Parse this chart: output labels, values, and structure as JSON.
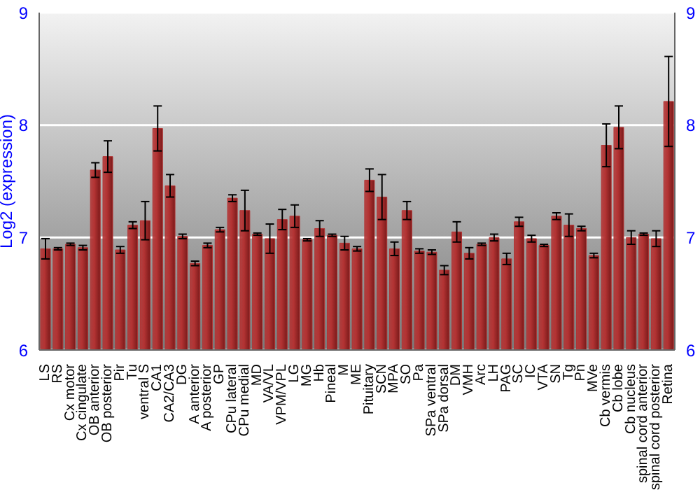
{
  "chart_data": {
    "type": "bar",
    "ylabel": "Log2 (expression)",
    "categories": [
      "LS",
      "RS",
      "Cx motor",
      "Cx cingulate",
      "OB anterior",
      "OB posterior",
      "Pir",
      "Tu",
      "ventral S",
      "CA1",
      "CA2/CA3",
      "DG",
      "A anterior",
      "A posterior",
      "GP",
      "CPu lateral",
      "CPu medial",
      "MD",
      "VA/VL",
      "VPM/VPL",
      "LG",
      "MG",
      "Hb",
      "Pineal",
      "M",
      "ME",
      "Pituitary",
      "SCN",
      "MPA",
      "SO",
      "Pa",
      "SPa ventral",
      "SPa dorsal",
      "DM",
      "VMH",
      "Arc",
      "LH",
      "PAG",
      "SC",
      "IC",
      "VTA",
      "SN",
      "Tg",
      "Pn",
      "MVe",
      "Cb vermis",
      "Cb lobe",
      "Cb nucleus",
      "spinal cord anterior",
      "spinal cord posterior",
      "Retina"
    ],
    "values": [
      6.9,
      6.9,
      6.94,
      6.91,
      7.6,
      7.72,
      6.89,
      7.11,
      7.15,
      7.97,
      7.46,
      7.01,
      6.77,
      6.93,
      7.07,
      7.35,
      7.24,
      7.03,
      6.99,
      7.16,
      7.19,
      6.98,
      7.08,
      7.02,
      6.95,
      6.9,
      7.51,
      7.36,
      6.9,
      7.24,
      6.88,
      6.87,
      6.71,
      7.05,
      6.86,
      6.94,
      7.0,
      6.81,
      7.14,
      6.99,
      6.93,
      7.19,
      7.11,
      7.08,
      6.84,
      7.82,
      7.98,
      7.0,
      7.03,
      6.99,
      8.21
    ],
    "errors": [
      0.09,
      0.01,
      0.01,
      0.02,
      0.065,
      0.14,
      0.03,
      0.03,
      0.17,
      0.2,
      0.1,
      0.02,
      0.02,
      0.02,
      0.02,
      0.03,
      0.18,
      0.01,
      0.13,
      0.09,
      0.1,
      0.01,
      0.07,
      0.01,
      0.06,
      0.02,
      0.1,
      0.2,
      0.06,
      0.08,
      0.02,
      0.02,
      0.04,
      0.09,
      0.05,
      0.01,
      0.03,
      0.05,
      0.04,
      0.03,
      0.01,
      0.03,
      0.1,
      0.02,
      0.02,
      0.19,
      0.19,
      0.06,
      0.01,
      0.07,
      0.4
    ],
    "color": "#b33333",
    "ylim": [
      6,
      9
    ],
    "yticks": [
      6,
      7,
      8,
      9
    ],
    "y2lim": [
      6,
      9
    ],
    "y2ticks": [
      6,
      7,
      8,
      9
    ],
    "grid": "y"
  }
}
